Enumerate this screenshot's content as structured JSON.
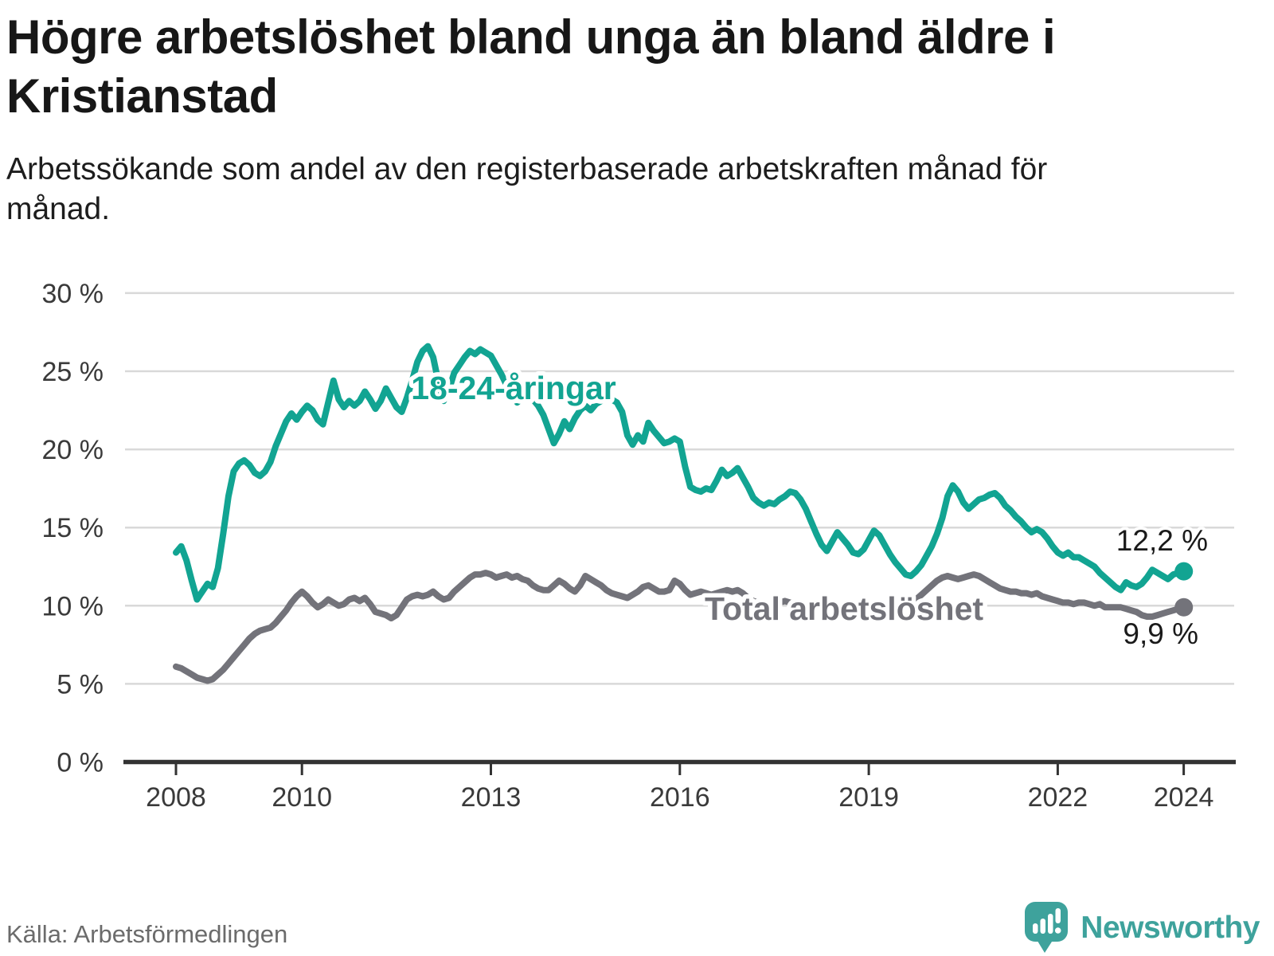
{
  "header": {
    "title": "Högre arbetslöshet bland unga än bland äldre i Kristianstad",
    "subtitle": "Arbetssökande som andel av den registerbaserade arbetskraften månad för månad."
  },
  "footer": {
    "source": "Källa: Arbetsförmedlingen",
    "brand": "Newsworthy"
  },
  "colors": {
    "young_line": "#12a492",
    "total_line": "#73737a",
    "gridline": "#d9d9d9",
    "axis": "#333333",
    "value_label": "#1a1a1a",
    "brand_teal": "#3ea29c"
  },
  "chart_data": {
    "type": "line",
    "title": "Högre arbetslöshet bland unga än bland äldre i Kristianstad",
    "subtitle": "Arbetssökande som andel av den registerbaserade arbetskraften månad för månad.",
    "unit": "%",
    "frequency": "monthly",
    "x_start": "2008-01",
    "x_end": "2024-01",
    "ylim": [
      0,
      30
    ],
    "grid": "horizontal",
    "legend": "inline-labels",
    "yticks": {
      "values": [
        0,
        5,
        10,
        15,
        20,
        25,
        30
      ],
      "labels": [
        "0 %",
        "5 %",
        "10 %",
        "15 %",
        "20 %",
        "25 %",
        "30 %"
      ]
    },
    "xticks": [
      2008,
      2010,
      2013,
      2016,
      2019,
      2022,
      2024
    ],
    "series": [
      {
        "name": "Total arbetslöshet",
        "color": "#73737a",
        "end_label": "9,9 %",
        "end_value": 9.9,
        "values": [
          6.1,
          6.0,
          5.8,
          5.6,
          5.4,
          5.3,
          5.2,
          5.3,
          5.6,
          5.9,
          6.3,
          6.7,
          7.1,
          7.5,
          7.9,
          8.2,
          8.4,
          8.5,
          8.6,
          8.9,
          9.3,
          9.7,
          10.2,
          10.6,
          10.9,
          10.6,
          10.2,
          9.9,
          10.1,
          10.4,
          10.2,
          10.0,
          10.1,
          10.4,
          10.5,
          10.3,
          10.5,
          10.1,
          9.6,
          9.5,
          9.4,
          9.2,
          9.4,
          9.9,
          10.4,
          10.6,
          10.7,
          10.6,
          10.7,
          10.9,
          10.6,
          10.4,
          10.5,
          10.9,
          11.2,
          11.5,
          11.8,
          12.0,
          12.0,
          12.1,
          12.0,
          11.8,
          11.9,
          12.0,
          11.8,
          11.9,
          11.7,
          11.6,
          11.3,
          11.1,
          11.0,
          11.0,
          11.3,
          11.6,
          11.4,
          11.1,
          10.9,
          11.3,
          11.9,
          11.7,
          11.5,
          11.3,
          11.0,
          10.8,
          10.7,
          10.6,
          10.5,
          10.7,
          10.9,
          11.2,
          11.3,
          11.1,
          10.9,
          10.9,
          11.0,
          11.6,
          11.4,
          11.0,
          10.7,
          10.8,
          10.9,
          10.8,
          10.7,
          10.8,
          10.9,
          11.0,
          10.9,
          11.0,
          10.8,
          10.5,
          10.3,
          10.2,
          10.0,
          9.9,
          10.0,
          10.2,
          10.3,
          10.2,
          10.0,
          9.9,
          9.8,
          9.9,
          10.0,
          9.8,
          9.7,
          9.6,
          9.7,
          9.9,
          9.8,
          9.7,
          9.6,
          9.7,
          9.8,
          9.9,
          10.0,
          9.9,
          9.8,
          9.7,
          9.8,
          10.0,
          10.2,
          10.4,
          10.7,
          11.0,
          11.3,
          11.6,
          11.8,
          11.9,
          11.8,
          11.7,
          11.8,
          11.9,
          12.0,
          11.9,
          11.7,
          11.5,
          11.3,
          11.1,
          11.0,
          10.9,
          10.9,
          10.8,
          10.8,
          10.7,
          10.8,
          10.6,
          10.5,
          10.4,
          10.3,
          10.2,
          10.2,
          10.1,
          10.2,
          10.2,
          10.1,
          10.0,
          10.1,
          9.9,
          9.9,
          9.9,
          9.9,
          9.8,
          9.7,
          9.6,
          9.4,
          9.3,
          9.3,
          9.4,
          9.5,
          9.6,
          9.7,
          9.8,
          9.9
        ]
      },
      {
        "name": "18-24-åringar",
        "color": "#12a492",
        "end_label": "12,2 %",
        "end_value": 12.2,
        "values": [
          13.4,
          13.8,
          12.9,
          11.6,
          10.4,
          10.9,
          11.4,
          11.2,
          12.4,
          14.6,
          17.0,
          18.6,
          19.1,
          19.3,
          19.0,
          18.5,
          18.3,
          18.6,
          19.2,
          20.2,
          21.0,
          21.8,
          22.3,
          21.9,
          22.4,
          22.8,
          22.5,
          21.9,
          21.6,
          23.0,
          24.4,
          23.2,
          22.7,
          23.1,
          22.8,
          23.1,
          23.7,
          23.2,
          22.6,
          23.1,
          23.9,
          23.3,
          22.7,
          22.4,
          23.3,
          24.4,
          25.6,
          26.3,
          26.6,
          25.9,
          24.3,
          23.1,
          23.8,
          24.9,
          25.4,
          25.9,
          26.3,
          26.1,
          26.4,
          26.2,
          26.0,
          25.4,
          24.8,
          24.1,
          23.5,
          23.0,
          23.3,
          23.6,
          23.2,
          22.8,
          22.2,
          21.3,
          20.4,
          21.0,
          21.8,
          21.3,
          22.0,
          22.5,
          22.8,
          22.5,
          22.9,
          23.1,
          23.3,
          23.2,
          23.0,
          22.4,
          20.9,
          20.3,
          20.9,
          20.5,
          21.7,
          21.2,
          20.8,
          20.4,
          20.5,
          20.7,
          20.5,
          18.9,
          17.6,
          17.4,
          17.3,
          17.5,
          17.4,
          18.0,
          18.7,
          18.3,
          18.5,
          18.8,
          18.2,
          17.6,
          16.9,
          16.6,
          16.4,
          16.6,
          16.5,
          16.8,
          17.0,
          17.3,
          17.2,
          16.8,
          16.2,
          15.4,
          14.6,
          13.9,
          13.5,
          14.1,
          14.7,
          14.3,
          13.9,
          13.4,
          13.3,
          13.6,
          14.2,
          14.8,
          14.5,
          13.9,
          13.3,
          12.8,
          12.4,
          12.0,
          11.9,
          12.2,
          12.6,
          13.2,
          13.8,
          14.6,
          15.6,
          17.0,
          17.7,
          17.3,
          16.6,
          16.2,
          16.5,
          16.8,
          16.9,
          17.1,
          17.2,
          16.9,
          16.4,
          16.1,
          15.7,
          15.4,
          15.0,
          14.7,
          14.9,
          14.7,
          14.3,
          13.8,
          13.4,
          13.2,
          13.4,
          13.1,
          13.1,
          12.9,
          12.7,
          12.5,
          12.1,
          11.8,
          11.5,
          11.2,
          11.0,
          11.5,
          11.3,
          11.2,
          11.4,
          11.8,
          12.3,
          12.1,
          11.9,
          11.7,
          12.0,
          12.1,
          12.2
        ]
      }
    ]
  }
}
